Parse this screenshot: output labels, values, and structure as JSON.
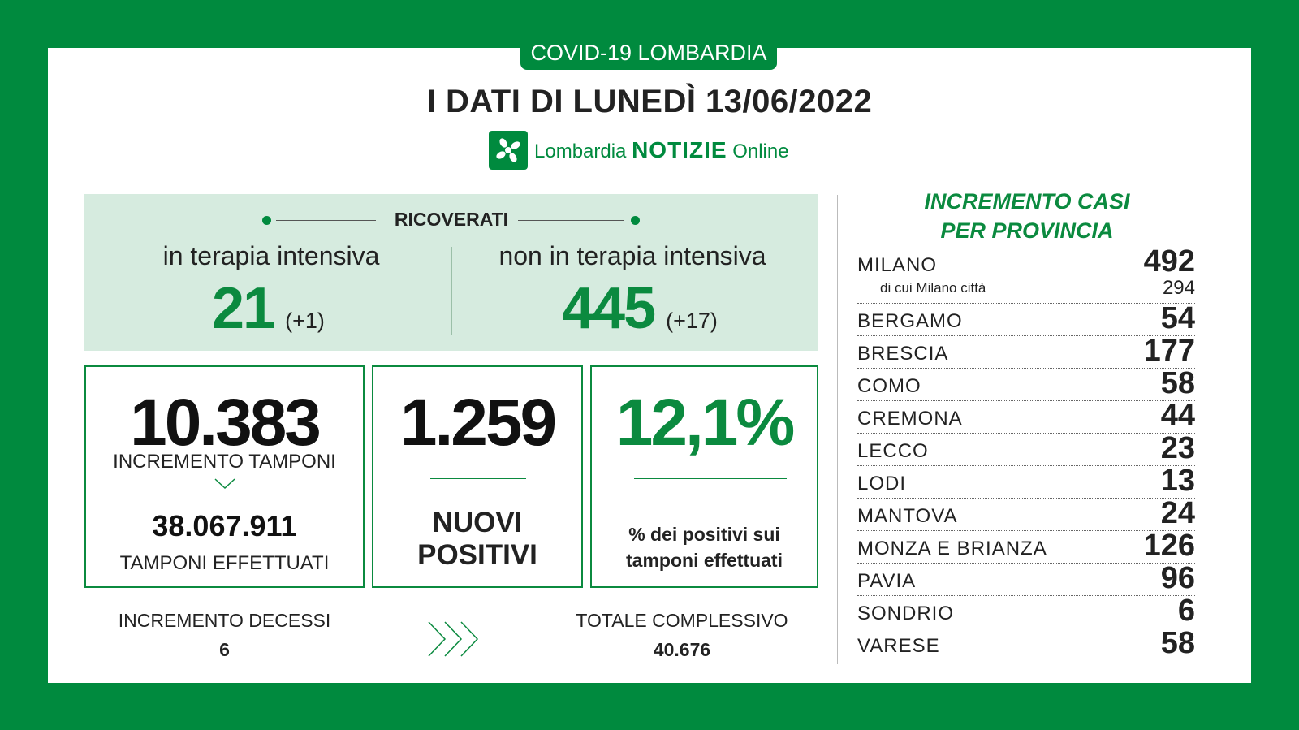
{
  "header": {
    "tag": "COVID-19 LOMBARDIA",
    "title": "I DATI DI LUNEDÌ 13/06/2022",
    "brand_prefix": "Lombardia ",
    "brand_bold": "NOTIZIE",
    "brand_suffix": " Online"
  },
  "ricoverati": {
    "label": "RICOVERATI",
    "intensiva": {
      "label": "in terapia intensiva",
      "value": "21",
      "delta": "(+1)"
    },
    "non_intensiva": {
      "label": "non in terapia intensiva",
      "value": "445",
      "delta": "(+17)"
    }
  },
  "tamponi": {
    "increment": "10.383",
    "increment_label": "INCREMENTO TAMPONI",
    "total": "38.067.911",
    "total_label": "TAMPONI EFFETTUATI"
  },
  "positivi": {
    "value": "1.259",
    "label_line1": "NUOVI",
    "label_line2": "POSITIVI"
  },
  "percentuale": {
    "value": "12,1%",
    "label_line1": "% dei positivi sui",
    "label_line2": "tamponi effettuati"
  },
  "decessi": {
    "increment_label": "INCREMENTO DECESSI",
    "increment": "6",
    "total_label": "TOTALE COMPLESSIVO",
    "total": "40.676"
  },
  "province": {
    "title_line1": "INCREMENTO CASI",
    "title_line2": "PER PROVINCIA",
    "milano": {
      "name": "MILANO",
      "value": "492",
      "sub_name": "di cui Milano città",
      "sub_value": "294"
    },
    "items": [
      {
        "name": "BERGAMO",
        "value": "54"
      },
      {
        "name": "BRESCIA",
        "value": "177"
      },
      {
        "name": "COMO",
        "value": "58"
      },
      {
        "name": "CREMONA",
        "value": "44"
      },
      {
        "name": "LECCO",
        "value": "23"
      },
      {
        "name": "LODI",
        "value": "13"
      },
      {
        "name": "MANTOVA",
        "value": "24"
      },
      {
        "name": "MONZA E BRIANZA",
        "value": "126"
      },
      {
        "name": "PAVIA",
        "value": "96"
      },
      {
        "name": "SONDRIO",
        "value": "6"
      },
      {
        "name": "VARESE",
        "value": "58"
      }
    ]
  },
  "colors": {
    "green": "#008a3e",
    "light_green": "#d6ebdf",
    "text": "#222222"
  }
}
